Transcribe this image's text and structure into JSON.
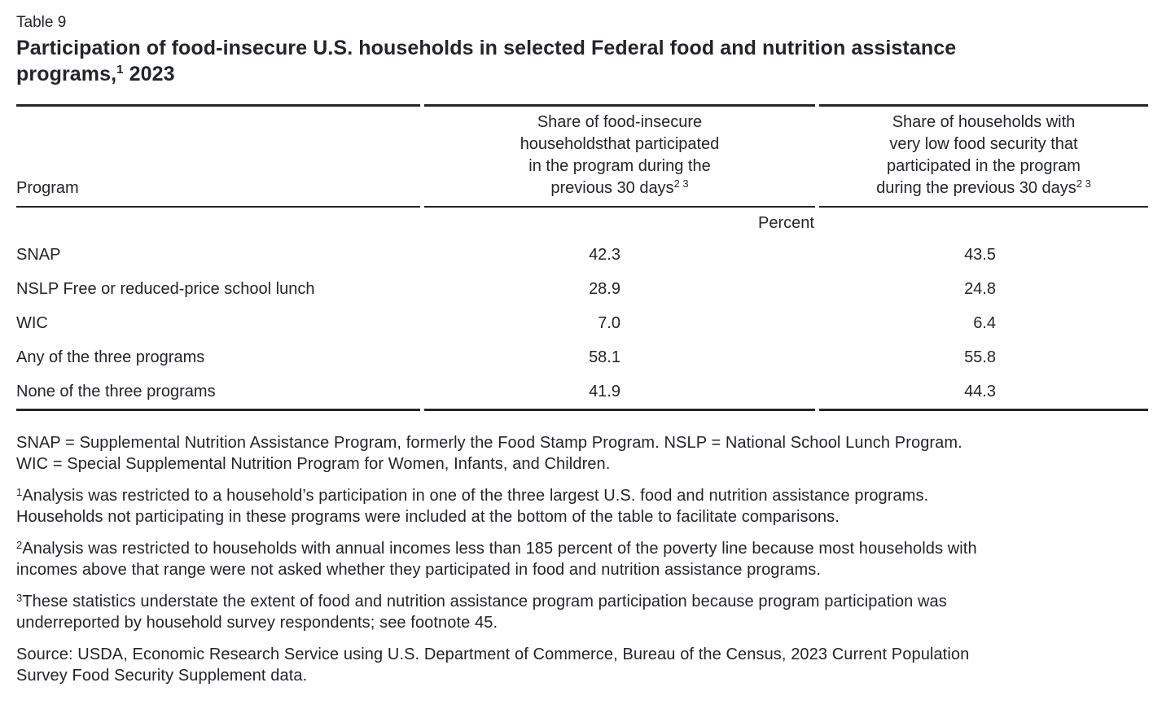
{
  "colors": {
    "text": "#22252c",
    "rule": "#23262b",
    "background": "#ffffff"
  },
  "header": {
    "table_label": "Table 9",
    "title_main": "Participation of food-insecure U.S. households in selected Federal food and nutrition assistance\nprograms,",
    "title_footnote_ref": "1",
    "title_year": " 2023"
  },
  "table": {
    "columns": [
      {
        "label": "Program",
        "footnote_refs": ""
      },
      {
        "label": "Share of food-insecure\nhouseholdsthat participated\nin the program during the\nprevious 30 days",
        "footnote_refs": "2 3"
      },
      {
        "label": "Share of households with\nvery low food security that\nparticipated in the program\nduring the previous 30 days",
        "footnote_refs": "2 3"
      }
    ],
    "unit_label": "Percent",
    "rows": [
      {
        "program": "SNAP",
        "share_food_insecure": "42.3",
        "share_very_low_food_security": "43.5"
      },
      {
        "program": "NSLP Free or reduced-price school lunch",
        "share_food_insecure": "28.9",
        "share_very_low_food_security": "24.8"
      },
      {
        "program": "WIC",
        "share_food_insecure": "7.0",
        "share_very_low_food_security": "6.4"
      },
      {
        "program": "Any of the three programs",
        "share_food_insecure": "58.1",
        "share_very_low_food_security": "55.8"
      },
      {
        "program": "None of the three programs",
        "share_food_insecure": "41.9",
        "share_very_low_food_security": "44.3"
      }
    ]
  },
  "notes": {
    "abbreviations": "SNAP = Supplemental Nutrition Assistance Program, formerly the Food Stamp Program. NSLP = National School Lunch Program.\nWIC = Special Supplemental Nutrition Program for Women, Infants, and Children.",
    "footnotes": [
      {
        "marker": "1",
        "text": "Analysis was restricted to a household’s participation in one of the three largest U.S. food and nutrition assistance programs.\nHouseholds not participating in these programs were included at the bottom of the table to facilitate comparisons."
      },
      {
        "marker": "2",
        "text": "Analysis was restricted to households with annual incomes less than 185 percent of the poverty line because most households with\nincomes above that range were not asked whether they participated in food and nutrition assistance programs."
      },
      {
        "marker": "3",
        "text": "These statistics understate the extent of food and nutrition assistance program participation because program participation was\nunderreported by household survey respondents; see footnote 45."
      }
    ],
    "source": "Source: USDA, Economic Research Service using U.S. Department of Commerce, Bureau of the Census, 2023 Current Population\nSurvey Food Security Supplement data."
  }
}
